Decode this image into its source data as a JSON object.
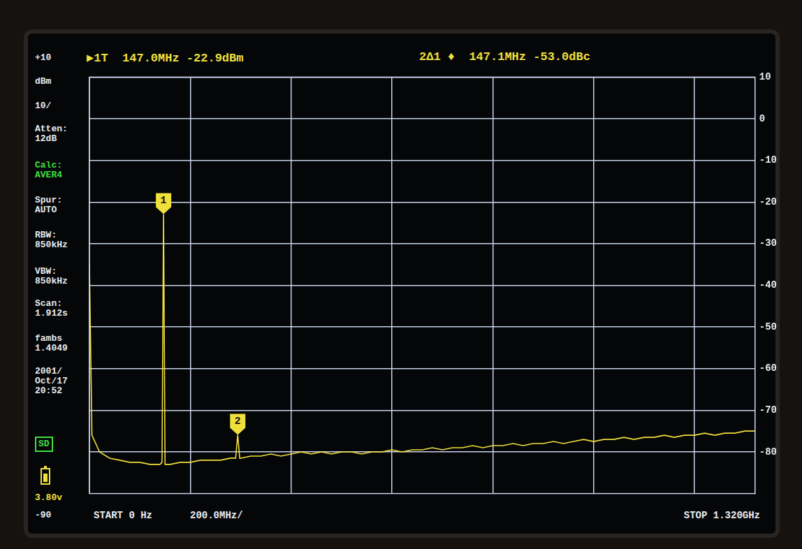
{
  "chart_data": {
    "type": "line",
    "x": [
      0,
      5,
      20,
      40,
      60,
      80,
      100,
      120,
      140,
      144,
      147.0,
      150,
      160,
      180,
      200,
      220,
      240,
      260,
      280,
      290,
      294.1,
      298,
      300,
      320,
      340,
      360,
      380,
      400,
      420,
      440,
      460,
      480,
      500,
      520,
      540,
      560,
      580,
      600,
      620,
      640,
      660,
      680,
      700,
      720,
      740,
      760,
      780,
      800,
      820,
      840,
      860,
      880,
      900,
      920,
      940,
      960,
      980,
      1000,
      1020,
      1040,
      1060,
      1080,
      1100,
      1120,
      1140,
      1160,
      1180,
      1200,
      1220,
      1240,
      1260,
      1280,
      1300,
      1320
    ],
    "values": [
      -35,
      -76,
      -80,
      -81.5,
      -82,
      -82.5,
      -82.5,
      -83,
      -83,
      -82.5,
      -22.9,
      -83,
      -83,
      -82.5,
      -82.5,
      -82,
      -82,
      -82,
      -81.5,
      -81.5,
      -75.9,
      -81.5,
      -81.5,
      -81,
      -81,
      -80.5,
      -81,
      -80.5,
      -80,
      -80.5,
      -80,
      -80.5,
      -80,
      -80,
      -80.5,
      -80,
      -80,
      -79.5,
      -80,
      -79.5,
      -79.5,
      -79,
      -79.5,
      -79,
      -79,
      -78.5,
      -79,
      -78.5,
      -78.5,
      -78,
      -78.5,
      -78,
      -78,
      -77.5,
      -78,
      -77.5,
      -77,
      -77.5,
      -77,
      -77,
      -76.5,
      -77,
      -76.5,
      -76.5,
      -76,
      -76.5,
      -76,
      -76,
      -75.5,
      -76,
      -75.5,
      -75.5,
      -75,
      -75
    ],
    "color": "#f0e03c",
    "xlim": [
      0,
      1320
    ],
    "xticks": [
      0,
      200,
      400,
      600,
      800,
      1000,
      1200
    ],
    "ylim": [
      -90,
      10
    ],
    "yticks": [
      -80,
      -70,
      -60,
      -50,
      -40,
      -30,
      -20,
      -10,
      0,
      10
    ],
    "grid": true,
    "tick_labels": "y",
    "markers": [
      {
        "label": "1",
        "x": 147.0,
        "y": -22.9
      },
      {
        "label": "2",
        "x": 294.1,
        "y": -75.9
      }
    ],
    "readouts": [
      "▶1T  147.0MHz -22.9dBm",
      "2Δ1 ♦  147.1MHz -53.0dBc"
    ],
    "sidebar": [
      {
        "lines": [
          "+10"
        ]
      },
      {
        "lines": [
          "dBm"
        ]
      },
      {
        "lines": [
          "10/"
        ]
      },
      {
        "lines": [
          "Atten:",
          "12dB"
        ]
      },
      {
        "lines": [
          "Calc:",
          "AVER4"
        ],
        "color": "#40e040"
      },
      {
        "lines": [
          "Spur:",
          "AUTO"
        ]
      },
      {
        "lines": [
          "RBW:",
          "850kHz"
        ]
      },
      {
        "lines": [
          "VBW:",
          "850kHz"
        ]
      },
      {
        "lines": [
          "Scan:",
          "1.912s"
        ]
      },
      {
        "lines": [
          "fambs",
          "1.4049"
        ]
      },
      {
        "lines": [
          "2001/",
          "Oct/17",
          "20:52"
        ]
      },
      {
        "lines": [
          "SD"
        ],
        "color": "#40e040"
      },
      {
        "lines": [
          "3.80v"
        ],
        "color": "#f0e03c"
      },
      {
        "lines": [
          "-90"
        ]
      }
    ],
    "start_label": "START 0 Hz",
    "span_label": "200.0MHz/",
    "stop_label": "STOP 1.320GHz"
  }
}
